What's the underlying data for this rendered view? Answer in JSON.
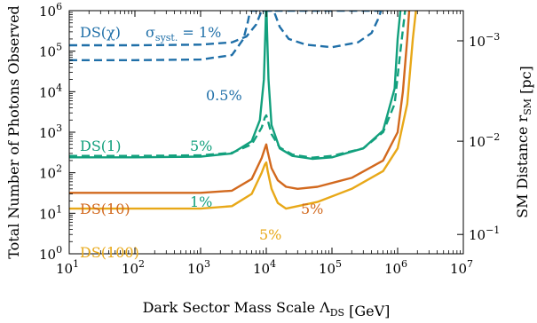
{
  "chart_data": {
    "type": "line",
    "xlabel": "Dark Sector Mass Scale Λ_DS [GeV]",
    "ylabel": "Total Number of Photons Observed",
    "y2label": "SM Distance r_SM [pc]",
    "xscale": "log",
    "yscale": "log",
    "xlim": [
      10,
      10000000
    ],
    "ylim": [
      1,
      1000000
    ],
    "grid": false,
    "x_ticks": [
      {
        "value": 10,
        "base": "10",
        "exp": "1"
      },
      {
        "value": 100,
        "base": "10",
        "exp": "2"
      },
      {
        "value": 1000,
        "base": "10",
        "exp": "3"
      },
      {
        "value": 10000,
        "base": "10",
        "exp": "4"
      },
      {
        "value": 100000,
        "base": "10",
        "exp": "5"
      },
      {
        "value": 1000000,
        "base": "10",
        "exp": "6"
      },
      {
        "value": 10000000,
        "base": "10",
        "exp": "7"
      }
    ],
    "y_ticks": [
      {
        "value": 1,
        "base": "10",
        "exp": "0"
      },
      {
        "value": 10,
        "base": "10",
        "exp": "1"
      },
      {
        "value": 100,
        "base": "10",
        "exp": "2"
      },
      {
        "value": 1000,
        "base": "10",
        "exp": "3"
      },
      {
        "value": 10000,
        "base": "10",
        "exp": "4"
      },
      {
        "value": 100000,
        "base": "10",
        "exp": "5"
      },
      {
        "value": 1000000,
        "base": "10",
        "exp": "6"
      }
    ],
    "y2_ticks": [
      {
        "value": 0.001,
        "base": "10",
        "exp": "−3",
        "at_photons": 180000
      },
      {
        "value": 0.01,
        "base": "10",
        "exp": "−2",
        "at_photons": 600
      },
      {
        "value": 0.1,
        "base": "10",
        "exp": "−1",
        "at_photons": 3
      }
    ],
    "series": [
      {
        "label": "DS(χ)",
        "color": "#1f6fa8",
        "style": "dashed",
        "annotation": "σ_syst. = 1%",
        "x": [
          10,
          100,
          1000,
          3000,
          5000,
          7000,
          8500,
          9500,
          10000,
          10500,
          11500,
          13000,
          16000,
          22000,
          40000,
          100000,
          250000,
          400000,
          500000,
          560000
        ],
        "y": [
          140000,
          140000,
          145000,
          165000,
          230000,
          450000,
          1000000,
          1000000,
          1000000,
          1000000,
          1000000,
          1000000,
          400000,
          200000,
          145000,
          125000,
          165000,
          280000,
          600000,
          1000000
        ]
      },
      {
        "label": "",
        "color": "#1f6fa8",
        "style": "dashed",
        "annotation": "0.5%",
        "x": [
          10,
          100,
          1000,
          3000,
          4500,
          5200,
          5600,
          5800,
          600000,
          640000,
          680000,
          700000,
          720000
        ],
        "y": [
          60000,
          60000,
          62000,
          80000,
          200000,
          500000,
          900000,
          1000000,
          1000000,
          1000000,
          1000000,
          1000000,
          1000000
        ]
      },
      {
        "label": "DS(1)",
        "color": "#12a07d",
        "style": "dashed",
        "annotation": "",
        "x": [
          10,
          100,
          1000,
          3000,
          6000,
          8500,
          9500,
          10000,
          10500,
          12000,
          16000,
          25000,
          50000,
          100000,
          300000,
          600000,
          900000,
          1100000,
          1300000
        ],
        "y": [
          260,
          260,
          270,
          310,
          500,
          1300,
          2300,
          2600,
          2000,
          900,
          420,
          280,
          235,
          260,
          400,
          1000,
          5000,
          100000,
          1000000
        ]
      },
      {
        "label": "",
        "color": "#12a07d",
        "style": "solid",
        "annotation": "1%",
        "x": [
          10,
          100,
          1000,
          3000,
          6000,
          8000,
          9200,
          9700,
          9900,
          10000,
          10100,
          10300,
          10800,
          12000,
          16000,
          25000,
          50000,
          100000,
          300000,
          600000,
          900000,
          1000000,
          1100000
        ],
        "y": [
          240,
          240,
          250,
          300,
          600,
          2000,
          20000,
          300000,
          1000000,
          1000000,
          1000000,
          300000,
          20000,
          1500,
          400,
          260,
          220,
          240,
          400,
          1100,
          12000,
          200000,
          1000000
        ]
      },
      {
        "label": "DS(10)",
        "color": "#d2691e",
        "style": "solid",
        "annotation": "5%",
        "x": [
          10,
          100,
          1000,
          3000,
          6000,
          8500,
          9500,
          10000,
          10500,
          12000,
          15000,
          20000,
          30000,
          60000,
          200000,
          600000,
          1000000,
          1200000,
          1400000,
          1500000
        ],
        "y": [
          32,
          32,
          32,
          36,
          70,
          230,
          400,
          500,
          330,
          130,
          65,
          45,
          40,
          45,
          75,
          200,
          1000,
          10000,
          200000,
          1000000
        ]
      },
      {
        "label": "DS(100)",
        "color": "#e8a818",
        "style": "solid",
        "annotation": "5%",
        "x": [
          10,
          100,
          1000,
          3000,
          6000,
          8500,
          9500,
          10000,
          10500,
          12000,
          15000,
          20000,
          30000,
          60000,
          200000,
          600000,
          1000000,
          1400000,
          1700000,
          1900000
        ],
        "y": [
          13,
          13,
          13,
          15,
          30,
          100,
          160,
          180,
          110,
          40,
          18,
          13,
          15,
          19,
          40,
          110,
          400,
          5000,
          200000,
          1000000
        ]
      }
    ]
  }
}
